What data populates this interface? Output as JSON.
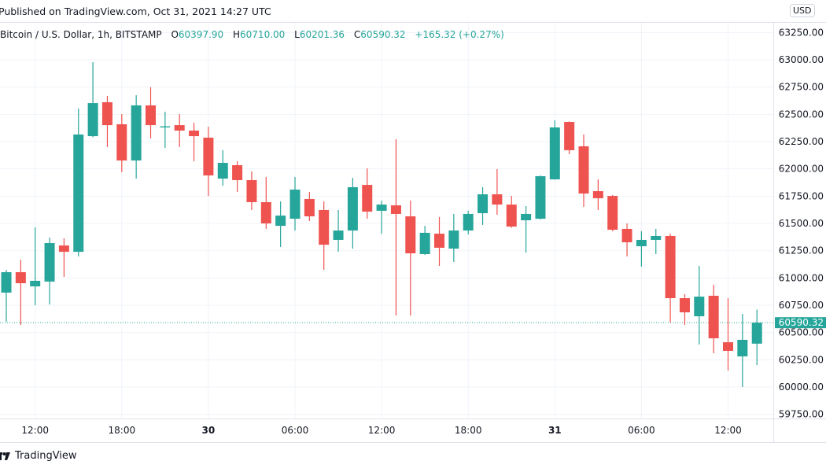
{
  "header": {
    "published": "Published on TradingView.com, Oct 31, 2021 14:27 UTC",
    "symbol": "Bitcoin / U.S. Dollar, 1h, BITSTAMP",
    "o_label": "O",
    "o_value": "60397.90",
    "h_label": "H",
    "h_value": "60710.00",
    "l_label": "L",
    "l_value": "60201.36",
    "c_label": "C",
    "c_value": "60590.32",
    "change": "+165.32 (+0.27%)"
  },
  "currency_button": "USD",
  "last_price_label": "60590.32",
  "footer": {
    "brand": "TradingView"
  },
  "colors": {
    "up": "#26a69a",
    "down": "#ef5350",
    "grid": "#f0f3fa",
    "text": "#131722"
  },
  "chart_data": {
    "type": "candlestick",
    "interval": "1h",
    "ylim": [
      59700,
      63300
    ],
    "grid": true,
    "y_ticks": [
      "63250.00",
      "63000.00",
      "62750.00",
      "62500.00",
      "62250.00",
      "62000.00",
      "61750.00",
      "61500.00",
      "61250.00",
      "61000.00",
      "60750.00",
      "60500.00",
      "60250.00",
      "60000.00",
      "59750.00"
    ],
    "x_ticks": [
      {
        "label": "12:00",
        "time": "2021-10-29 12:00",
        "bold": false
      },
      {
        "label": "18:00",
        "time": "2021-10-29 18:00",
        "bold": false
      },
      {
        "label": "30",
        "time": "2021-10-30 00:00",
        "bold": true
      },
      {
        "label": "06:00",
        "time": "2021-10-30 06:00",
        "bold": false
      },
      {
        "label": "12:00",
        "time": "2021-10-30 12:00",
        "bold": false
      },
      {
        "label": "18:00",
        "time": "2021-10-30 18:00",
        "bold": false
      },
      {
        "label": "31",
        "time": "2021-10-31 00:00",
        "bold": true
      },
      {
        "label": "06:00",
        "time": "2021-10-31 06:00",
        "bold": false
      },
      {
        "label": "12:00",
        "time": "2021-10-31 12:00",
        "bold": false
      }
    ],
    "first_time": "2021-10-29 10:00",
    "last_price": 60590.32,
    "candles": [
      [
        60866,
        61075,
        60599,
        61053
      ],
      [
        61053,
        61168,
        60570,
        60952
      ],
      [
        60923,
        61464,
        60750,
        60974
      ],
      [
        60967,
        61370,
        60757,
        61320
      ],
      [
        61298,
        61363,
        61010,
        61240
      ],
      [
        61240,
        62553,
        61197,
        62315
      ],
      [
        62300,
        62978,
        62290,
        62603
      ],
      [
        62611,
        62668,
        62200,
        62401
      ],
      [
        62409,
        62502,
        61969,
        62077
      ],
      [
        62077,
        62675,
        61911,
        62582
      ],
      [
        62582,
        62748,
        62279,
        62401
      ],
      [
        62380,
        62524,
        62192,
        62390
      ],
      [
        62401,
        62502,
        62200,
        62351
      ],
      [
        62351,
        62423,
        62070,
        62300
      ],
      [
        62286,
        62387,
        61752,
        61940
      ],
      [
        61911,
        62171,
        61846,
        62055
      ],
      [
        62034,
        62070,
        61789,
        61897
      ],
      [
        61897,
        61976,
        61623,
        61695
      ],
      [
        61695,
        61926,
        61450,
        61500
      ],
      [
        61478,
        61702,
        61284,
        61572
      ],
      [
        61543,
        61926,
        61435,
        61810
      ],
      [
        61724,
        61789,
        61522,
        61565
      ],
      [
        61623,
        61702,
        61075,
        61305
      ],
      [
        61349,
        61623,
        61241,
        61435
      ],
      [
        61435,
        61918,
        61269,
        61832
      ],
      [
        61853,
        62005,
        61543,
        61608
      ],
      [
        61616,
        61709,
        61406,
        61673
      ],
      [
        61666,
        62272,
        60656,
        61587
      ],
      [
        61565,
        61709,
        60656,
        61226
      ],
      [
        61219,
        61478,
        61212,
        61414
      ],
      [
        61406,
        61558,
        61111,
        61277
      ],
      [
        61269,
        61587,
        61147,
        61435
      ],
      [
        61435,
        61616,
        61399,
        61587
      ],
      [
        61594,
        61832,
        61486,
        61767
      ],
      [
        61767,
        61998,
        61580,
        61673
      ],
      [
        61673,
        61752,
        61460,
        61471
      ],
      [
        61529,
        61659,
        61233,
        61587
      ],
      [
        61543,
        61940,
        61536,
        61933
      ],
      [
        61904,
        62445,
        61900,
        62380
      ],
      [
        62430,
        62435,
        62135,
        62171
      ],
      [
        62207,
        62315,
        61652,
        61774
      ],
      [
        61796,
        61904,
        61623,
        61731
      ],
      [
        61752,
        61760,
        61428,
        61442
      ],
      [
        61450,
        61500,
        61197,
        61327
      ],
      [
        61291,
        61428,
        61104,
        61349
      ],
      [
        61349,
        61450,
        61219,
        61385
      ],
      [
        61385,
        61406,
        60592,
        60815
      ],
      [
        60815,
        60851,
        60570,
        60685
      ],
      [
        60649,
        61111,
        60390,
        60829
      ],
      [
        60837,
        60938,
        60310,
        60447
      ],
      [
        60411,
        60815,
        60152,
        60332
      ],
      [
        60281,
        60671,
        60000,
        60433
      ],
      [
        60397.9,
        60710.0,
        60201.36,
        60590.32
      ]
    ]
  }
}
